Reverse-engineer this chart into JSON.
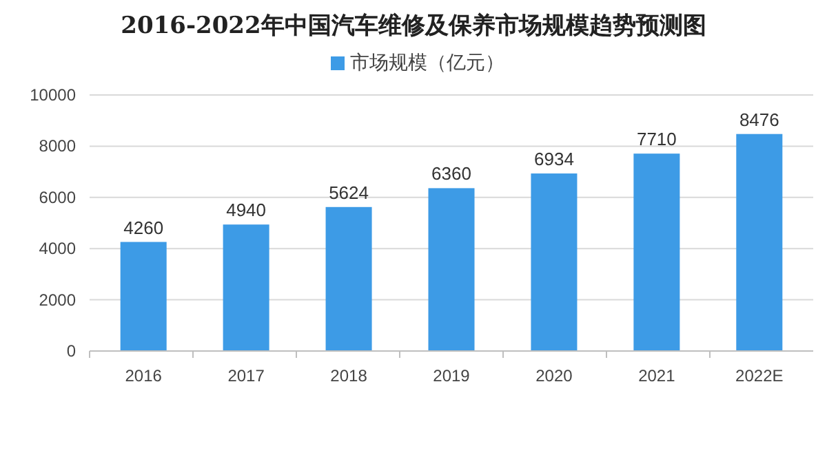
{
  "chart_data": {
    "type": "bar",
    "title": "2016-2022年中国汽车维修及保养市场规模趋势预测图",
    "categories": [
      "2016",
      "2017",
      "2018",
      "2019",
      "2020",
      "2021",
      "2022E"
    ],
    "series": [
      {
        "name": "市场规模（亿元）",
        "color": "#3d9be6",
        "values": [
          4260,
          4940,
          5624,
          6360,
          6934,
          7710,
          8476
        ]
      }
    ],
    "ylim": [
      0,
      10000
    ],
    "yticks": [
      0,
      2000,
      4000,
      6000,
      8000,
      10000
    ],
    "grid": "y",
    "legend": "top",
    "data_labels": true
  }
}
